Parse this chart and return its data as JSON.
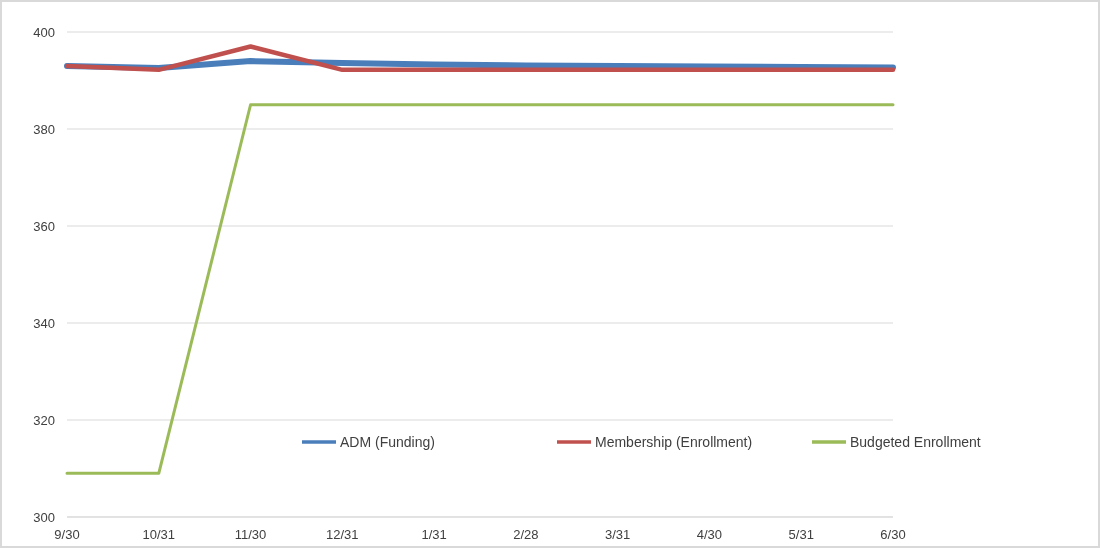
{
  "chart_data": {
    "type": "line",
    "categories": [
      "9/30",
      "10/31",
      "11/30",
      "12/31",
      "1/31",
      "2/28",
      "3/31",
      "4/30",
      "5/31",
      "6/30"
    ],
    "series": [
      {
        "name": "ADM (Funding)",
        "color": "#4a7ebb",
        "values": [
          393,
          392.6,
          394,
          393.6,
          393.3,
          393.1,
          393,
          392.9,
          392.8,
          392.7
        ]
      },
      {
        "name": "Membership (Enrollment)",
        "color": "#c0504d",
        "values": [
          393,
          392.2,
          397,
          392.2,
          392.2,
          392.2,
          392.2,
          392.2,
          392.2,
          392.2
        ]
      },
      {
        "name": "Budgeted Enrollment",
        "color": "#9bbb59",
        "values": [
          309,
          309,
          385,
          385,
          385,
          385,
          385,
          385,
          385,
          385
        ]
      }
    ],
    "ylim": [
      300,
      400
    ],
    "yticks": [
      300,
      320,
      340,
      360,
      380,
      400
    ],
    "grid": "y",
    "legend": "bottom",
    "marker": "none",
    "line_style": "solid"
  }
}
